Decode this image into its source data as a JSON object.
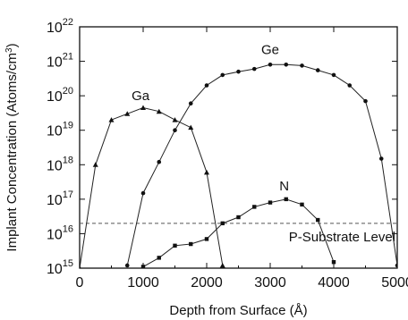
{
  "chart_data": {
    "type": "line",
    "title": "",
    "xlabel": "Depth from Surface (Å)",
    "ylabel": "Implant Concentration (Atoms/cm3)",
    "ylabel_parts": {
      "main": "Implant Concentration (Atoms/cm",
      "sup": "3",
      "close": ")"
    },
    "y_scale": "log",
    "xlim": [
      0,
      5000
    ],
    "ylim": [
      1000000000000000.0,
      1e+22
    ],
    "x_ticks": [
      {
        "value": 0,
        "label": "0"
      },
      {
        "value": 1000,
        "label": "1000"
      },
      {
        "value": 2000,
        "label": "2000"
      },
      {
        "value": 3000,
        "label": "3000"
      },
      {
        "value": 4000,
        "label": "4000"
      },
      {
        "value": 5000,
        "label": "5000"
      }
    ],
    "y_ticks": [
      {
        "value": 1000000000000000.0,
        "base": "10",
        "exp": "15"
      },
      {
        "value": 1e+16,
        "base": "10",
        "exp": "16"
      },
      {
        "value": 1e+17,
        "base": "10",
        "exp": "17"
      },
      {
        "value": 1e+18,
        "base": "10",
        "exp": "18"
      },
      {
        "value": 1e+19,
        "base": "10",
        "exp": "19"
      },
      {
        "value": 1e+20,
        "base": "10",
        "exp": "20"
      },
      {
        "value": 1e+21,
        "base": "10",
        "exp": "21"
      },
      {
        "value": 1e+22,
        "base": "10",
        "exp": "22"
      }
    ],
    "grid": false,
    "series": [
      {
        "name": "Ga",
        "marker": "triangle",
        "x": [
          0,
          250,
          500,
          750,
          1000,
          1250,
          1500,
          1750,
          2000,
          2250
        ],
        "y": [
          1000000000000000.0,
          1e+18,
          2e+19,
          3e+19,
          4.5e+19,
          3.5e+19,
          2e+19,
          1.2e+19,
          6e+17,
          1200000000000000.0
        ]
      },
      {
        "name": "Ge",
        "marker": "circle",
        "x": [
          750,
          1000,
          1250,
          1500,
          1750,
          2000,
          2250,
          2500,
          2750,
          3000,
          3250,
          3500,
          3750,
          4000,
          4250,
          4500,
          4750,
          5000
        ],
        "y": [
          1200000000000000.0,
          1.5e+17,
          1.2e+18,
          1e+19,
          6e+19,
          2e+20,
          4e+20,
          5e+20,
          6e+20,
          8e+20,
          8e+20,
          7.5e+20,
          5.5e+20,
          4e+20,
          2e+20,
          7e+19,
          1.5e+18,
          1200000000000000.0
        ]
      },
      {
        "name": "N",
        "marker": "square",
        "x": [
          1000,
          1250,
          1500,
          1750,
          2000,
          2250,
          2500,
          2750,
          3000,
          3250,
          3500,
          3750,
          4000
        ],
        "y": [
          1100000000000000.0,
          2000000000000000.0,
          4500000000000000.0,
          5000000000000000.0,
          7000000000000000.0,
          2e+16,
          3e+16,
          6e+16,
          8e+16,
          1e+17,
          7e+16,
          2.5e+16,
          1500000000000000.0
        ]
      }
    ],
    "reference_lines": [
      {
        "label": "P-Substrate Level",
        "y": 2e+16
      }
    ],
    "annotations": [
      {
        "text": "Ga",
        "x": 960,
        "y": 7.5e+19
      },
      {
        "text": "Ge",
        "x": 3000,
        "y": 1.6e+21
      },
      {
        "text": "N",
        "x": 3220,
        "y": 1.8e+17
      }
    ]
  }
}
